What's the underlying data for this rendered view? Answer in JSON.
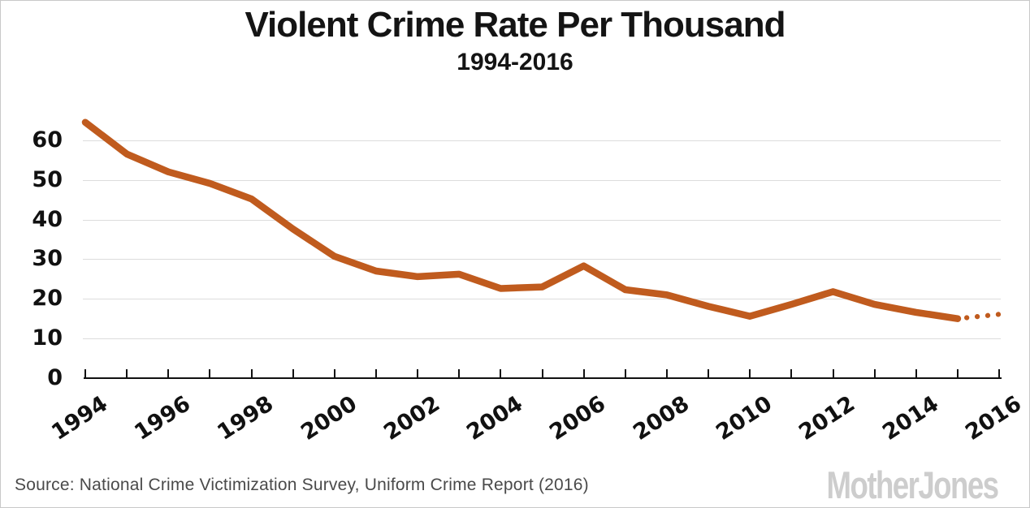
{
  "chart_data": {
    "type": "line",
    "title": "Violent Crime Rate Per Thousand",
    "subtitle": "1994-2016",
    "x": [
      1994,
      1995,
      1996,
      1997,
      1998,
      1999,
      2000,
      2001,
      2002,
      2003,
      2004,
      2005,
      2006,
      2007,
      2008,
      2009,
      2010,
      2011,
      2012,
      2013,
      2014,
      2015,
      2016
    ],
    "values": [
      64.5,
      56.5,
      52,
      49.1,
      45.2,
      37.6,
      30.7,
      27,
      25.6,
      26.2,
      22.6,
      23,
      28.3,
      22.3,
      21,
      18.1,
      15.6,
      18.6,
      21.8,
      18.6,
      16.6,
      15,
      16.1
    ],
    "solid_last_x": 2015,
    "dotted_segment": {
      "from_x": 2015,
      "to_x": 2016,
      "note": "projected value shown as dots"
    },
    "ylim": [
      0,
      66.5
    ],
    "y_ticks": [
      0,
      10,
      20,
      30,
      40,
      50,
      60
    ],
    "x_tick_labels": [
      "1994",
      "1996",
      "1998",
      "2000",
      "2002",
      "2004",
      "2006",
      "2008",
      "2010",
      "2012",
      "2014",
      "2016"
    ],
    "x_minor_ticks_every_year": true,
    "grid": "horizontal",
    "legend": "none",
    "line_color": "#C05B1E",
    "grid_color": "#dcdcdc",
    "axis_color": "#111111"
  },
  "footer": {
    "source": "Source: National Crime Victimization Survey, Uniform Crime Report (2016)",
    "logo": "MotherJones"
  }
}
